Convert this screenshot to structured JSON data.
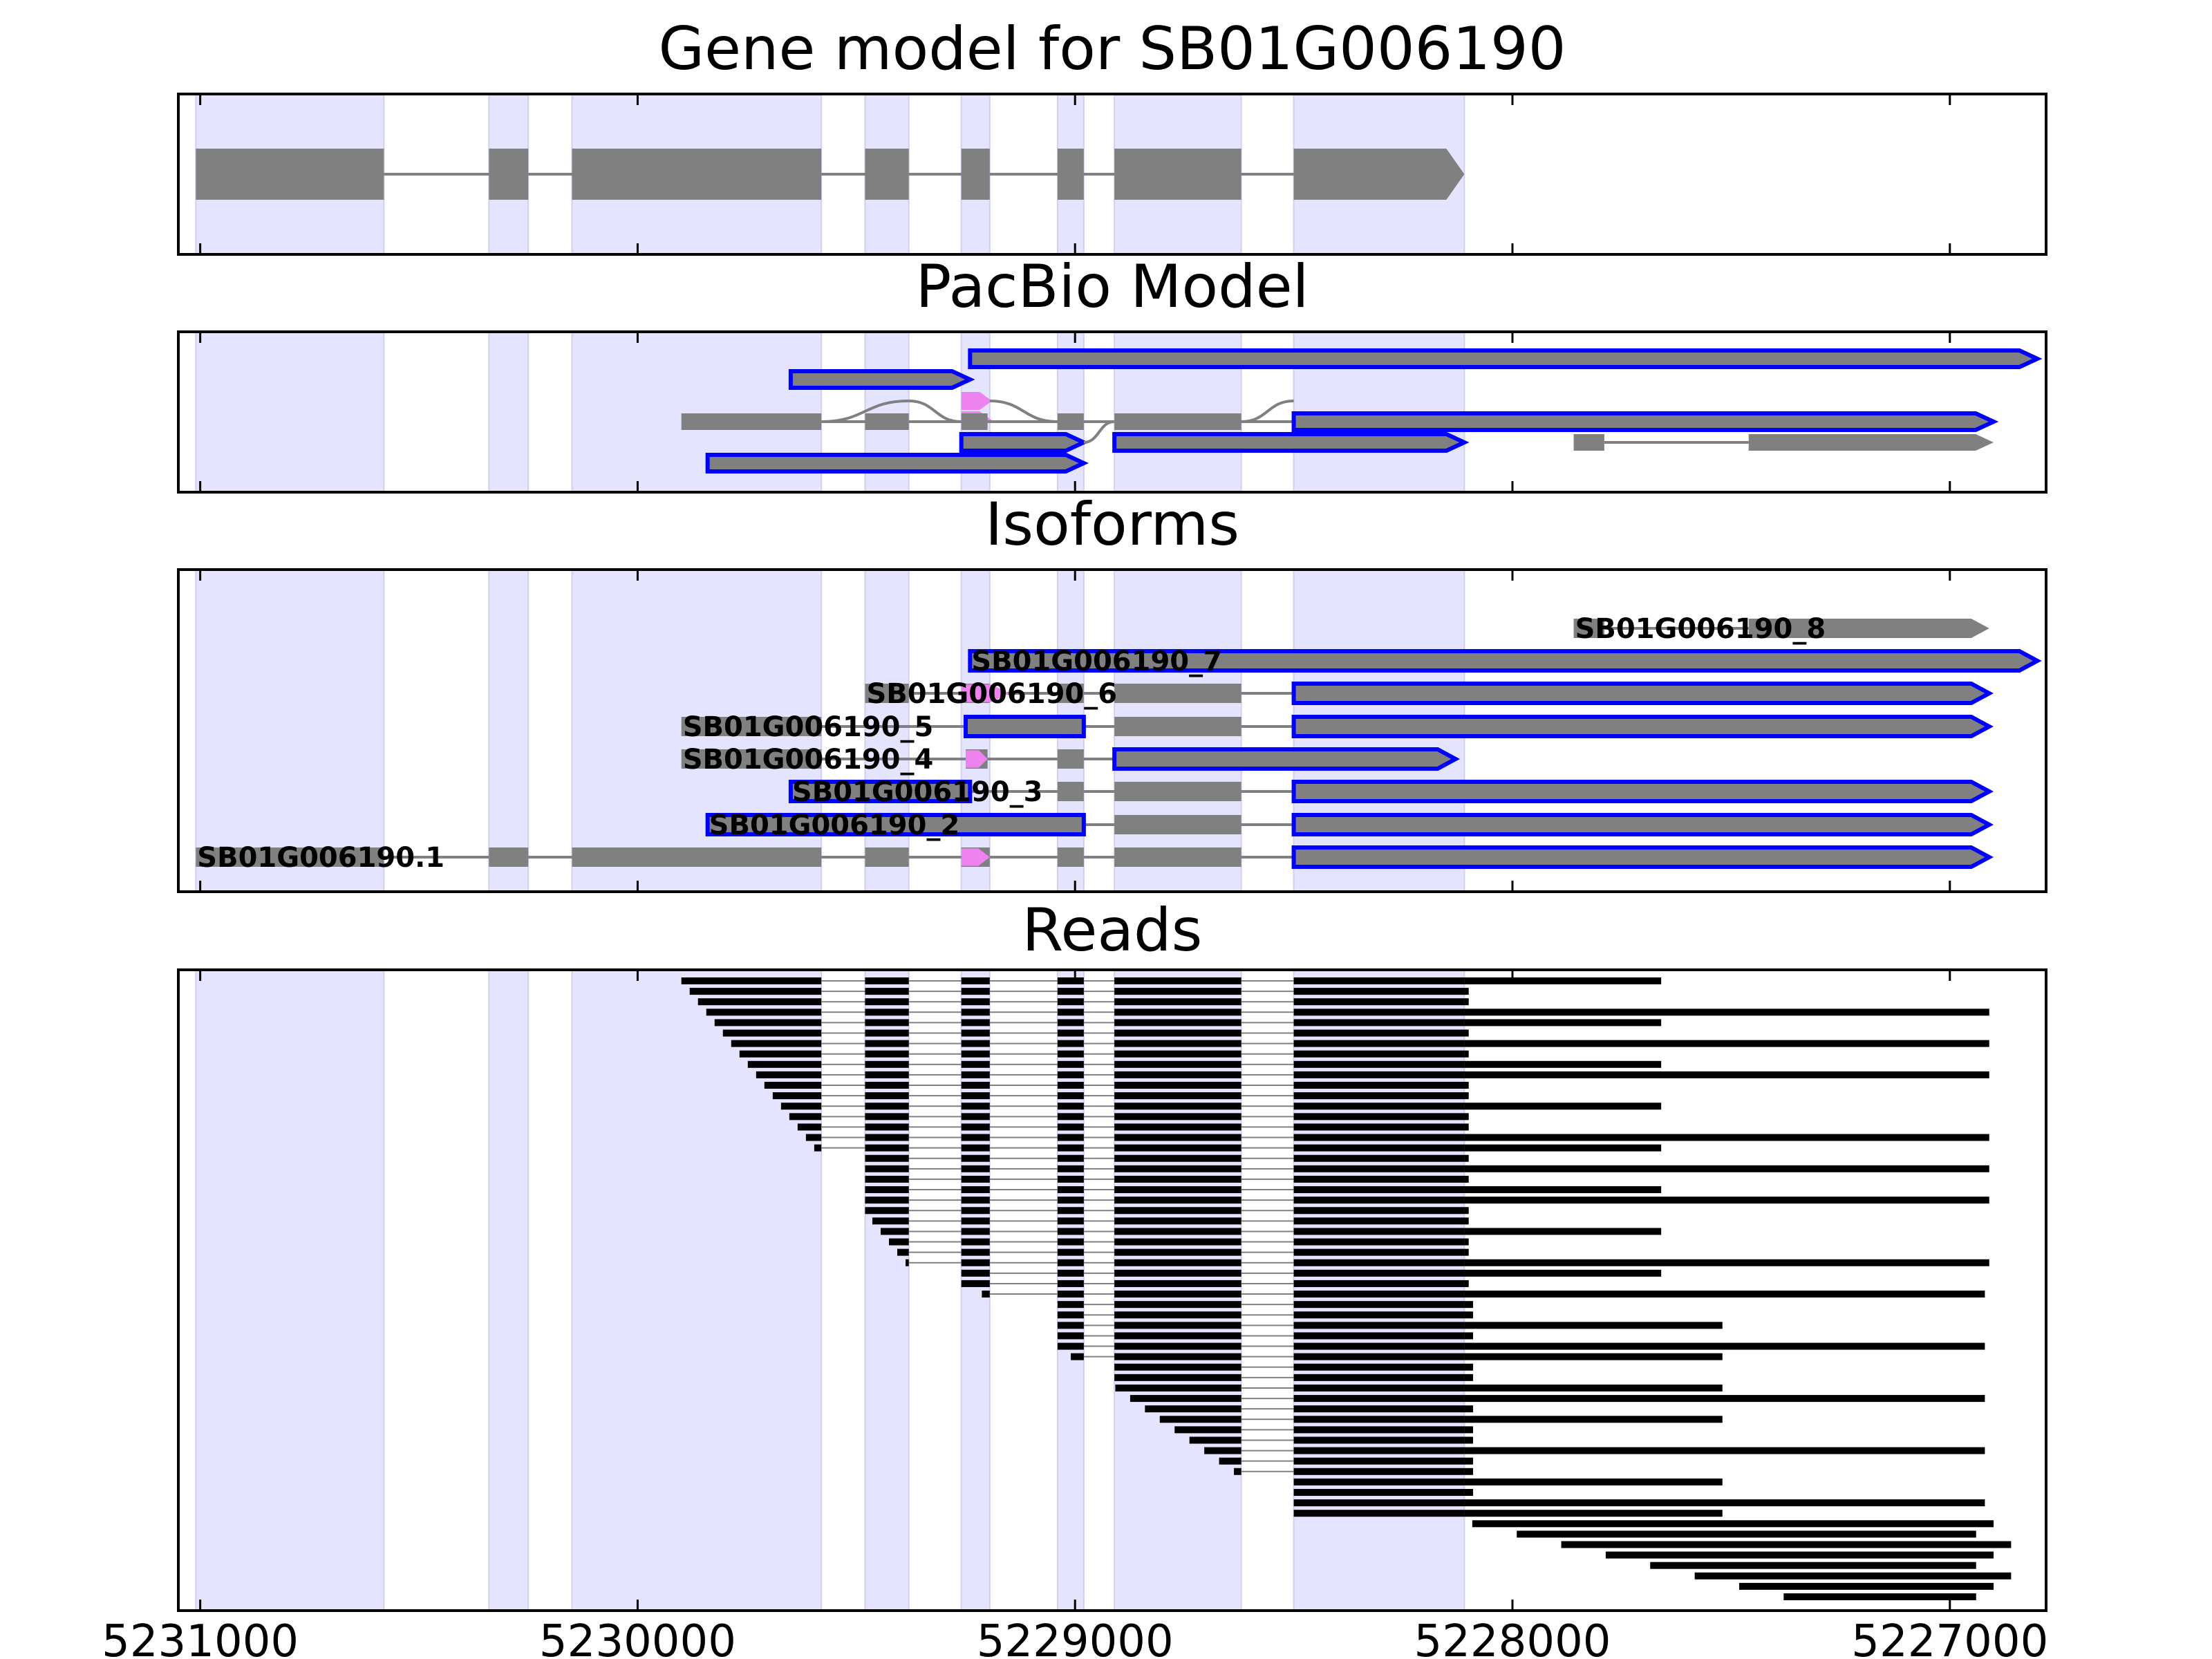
{
  "chart_data": {
    "type": "gene-track",
    "genomic_axis": {
      "range": [
        5231050,
        5226780
      ],
      "reversed": true,
      "tick_values": [
        5231000,
        5230000,
        5229000,
        5228000,
        5227000
      ],
      "tick_labels": [
        "5231000",
        "5230000",
        "5229000",
        "5228000",
        "5227000"
      ]
    },
    "colors": {
      "background_band": "#e4e4ff",
      "exon": "#808080",
      "pacbio_outline": "#0000ff",
      "alternative_exon": "#ee82ee",
      "read": "#000000",
      "intron": "#808080"
    },
    "shaded_regions": [
      [
        5231010,
        5230580
      ],
      [
        5230340,
        5230250
      ],
      [
        5230150,
        5229580
      ],
      [
        5229480,
        5229380
      ],
      [
        5229260,
        5229195
      ],
      [
        5229040,
        5228980
      ],
      [
        5228910,
        5228620
      ],
      [
        5228500,
        5228110
      ]
    ],
    "panels": [
      {
        "title": "Gene model for SB01G006190",
        "models": [
          {
            "label": "",
            "outlined": false,
            "exons": [
              [
                5231010,
                5230580
              ],
              [
                5230340,
                5230250
              ],
              [
                5230150,
                5229580
              ],
              [
                5229480,
                5229380
              ],
              [
                5229260,
                5229195
              ],
              [
                5229040,
                5228980
              ],
              [
                5228910,
                5228620
              ],
              [
                5228500,
                5228110
              ]
            ]
          }
        ]
      },
      {
        "title": "PacBio Model",
        "models": [
          {
            "label": "",
            "outlined": true,
            "exons": [
              [
                5229240,
                5226800
              ]
            ]
          },
          {
            "label": "",
            "outlined": true,
            "exons": [
              [
                5229650,
                5229240
              ]
            ]
          },
          {
            "label": "",
            "outlined": false,
            "exons": [
              [
                5229260,
                5229190
              ]
            ],
            "alt": true
          },
          {
            "label": "",
            "outlined": false,
            "exons": [
              [
                5229900,
                5229580
              ],
              [
                5229480,
                5229380
              ],
              [
                5229260,
                5229200
              ],
              [
                5229040,
                5228980
              ],
              [
                5228910,
                5228620
              ],
              [
                5228500,
                5227660
              ]
            ]
          },
          {
            "label": "",
            "outlined": true,
            "exons": [
              [
                5228500,
                5226900
              ]
            ]
          },
          {
            "label": "",
            "outlined": true,
            "exons": [
              [
                5229260,
                5228980
              ]
            ]
          },
          {
            "label": "",
            "outlined": true,
            "exons": [
              [
                5228910,
                5228110
              ]
            ]
          },
          {
            "label": "",
            "outlined": false,
            "exons": [
              [
                5227860,
                5227790
              ],
              [
                5227460,
                5226900
              ]
            ]
          },
          {
            "label": "",
            "outlined": true,
            "exons": [
              [
                5229840,
                5228980
              ]
            ]
          }
        ]
      },
      {
        "title": "Isoforms",
        "models": [
          {
            "label": "SB01G006190_8",
            "outlined": false,
            "exons": [
              [
                5227860,
                5227790
              ],
              [
                5227460,
                5226910
              ]
            ]
          },
          {
            "label": "SB01G006190_7",
            "outlined": true,
            "exons": [
              [
                5229240,
                5226800
              ]
            ]
          },
          {
            "label": "SB01G006190_6",
            "outlined": false,
            "exons": [
              [
                5229480,
                5229380
              ],
              [
                5229260,
                5229195
              ],
              [
                5229040,
                5228980
              ],
              [
                5228910,
                5228620
              ],
              [
                5228500,
                5226910
              ]
            ],
            "alt_exon": [
              5229260,
              5229150
            ],
            "outlined_exons": [
              4
            ]
          },
          {
            "label": "SB01G006190_5",
            "outlined": false,
            "exons": [
              [
                5229900,
                5229580
              ],
              [
                5229250,
                5228980
              ],
              [
                5228910,
                5228620
              ],
              [
                5228500,
                5226910
              ]
            ],
            "outlined_exons": [
              1,
              3
            ]
          },
          {
            "label": "SB01G006190_4",
            "outlined": false,
            "exons": [
              [
                5229900,
                5229580
              ],
              [
                5229250,
                5229200
              ],
              [
                5229040,
                5228980
              ],
              [
                5228910,
                5228130
              ]
            ],
            "alt_exon": [
              5229250,
              5229200
            ],
            "outlined_exons": [
              3
            ]
          },
          {
            "label": "SB01G006190_3",
            "outlined": false,
            "exons": [
              [
                5229650,
                5229240
              ],
              [
                5229040,
                5228980
              ],
              [
                5228910,
                5228620
              ],
              [
                5228500,
                5226910
              ]
            ],
            "outlined_exons": [
              0,
              3
            ]
          },
          {
            "label": "SB01G006190_2",
            "outlined": false,
            "exons": [
              [
                5229840,
                5228980
              ],
              [
                5228910,
                5228620
              ],
              [
                5228500,
                5226910
              ]
            ],
            "outlined_exons": [
              0,
              2
            ]
          },
          {
            "label": "SB01G006190.1",
            "outlined": false,
            "exons": [
              [
                5231010,
                5230580
              ],
              [
                5230340,
                5230250
              ],
              [
                5230150,
                5229580
              ],
              [
                5229480,
                5229380
              ],
              [
                5229260,
                5229195
              ],
              [
                5229040,
                5228980
              ],
              [
                5228910,
                5228620
              ],
              [
                5228500,
                5226910
              ]
            ],
            "alt_exon": [
              5229260,
              5229195
            ],
            "outlined_exons": [
              7
            ]
          }
        ]
      },
      {
        "title": "Reads",
        "read_count": 60
      }
    ]
  }
}
